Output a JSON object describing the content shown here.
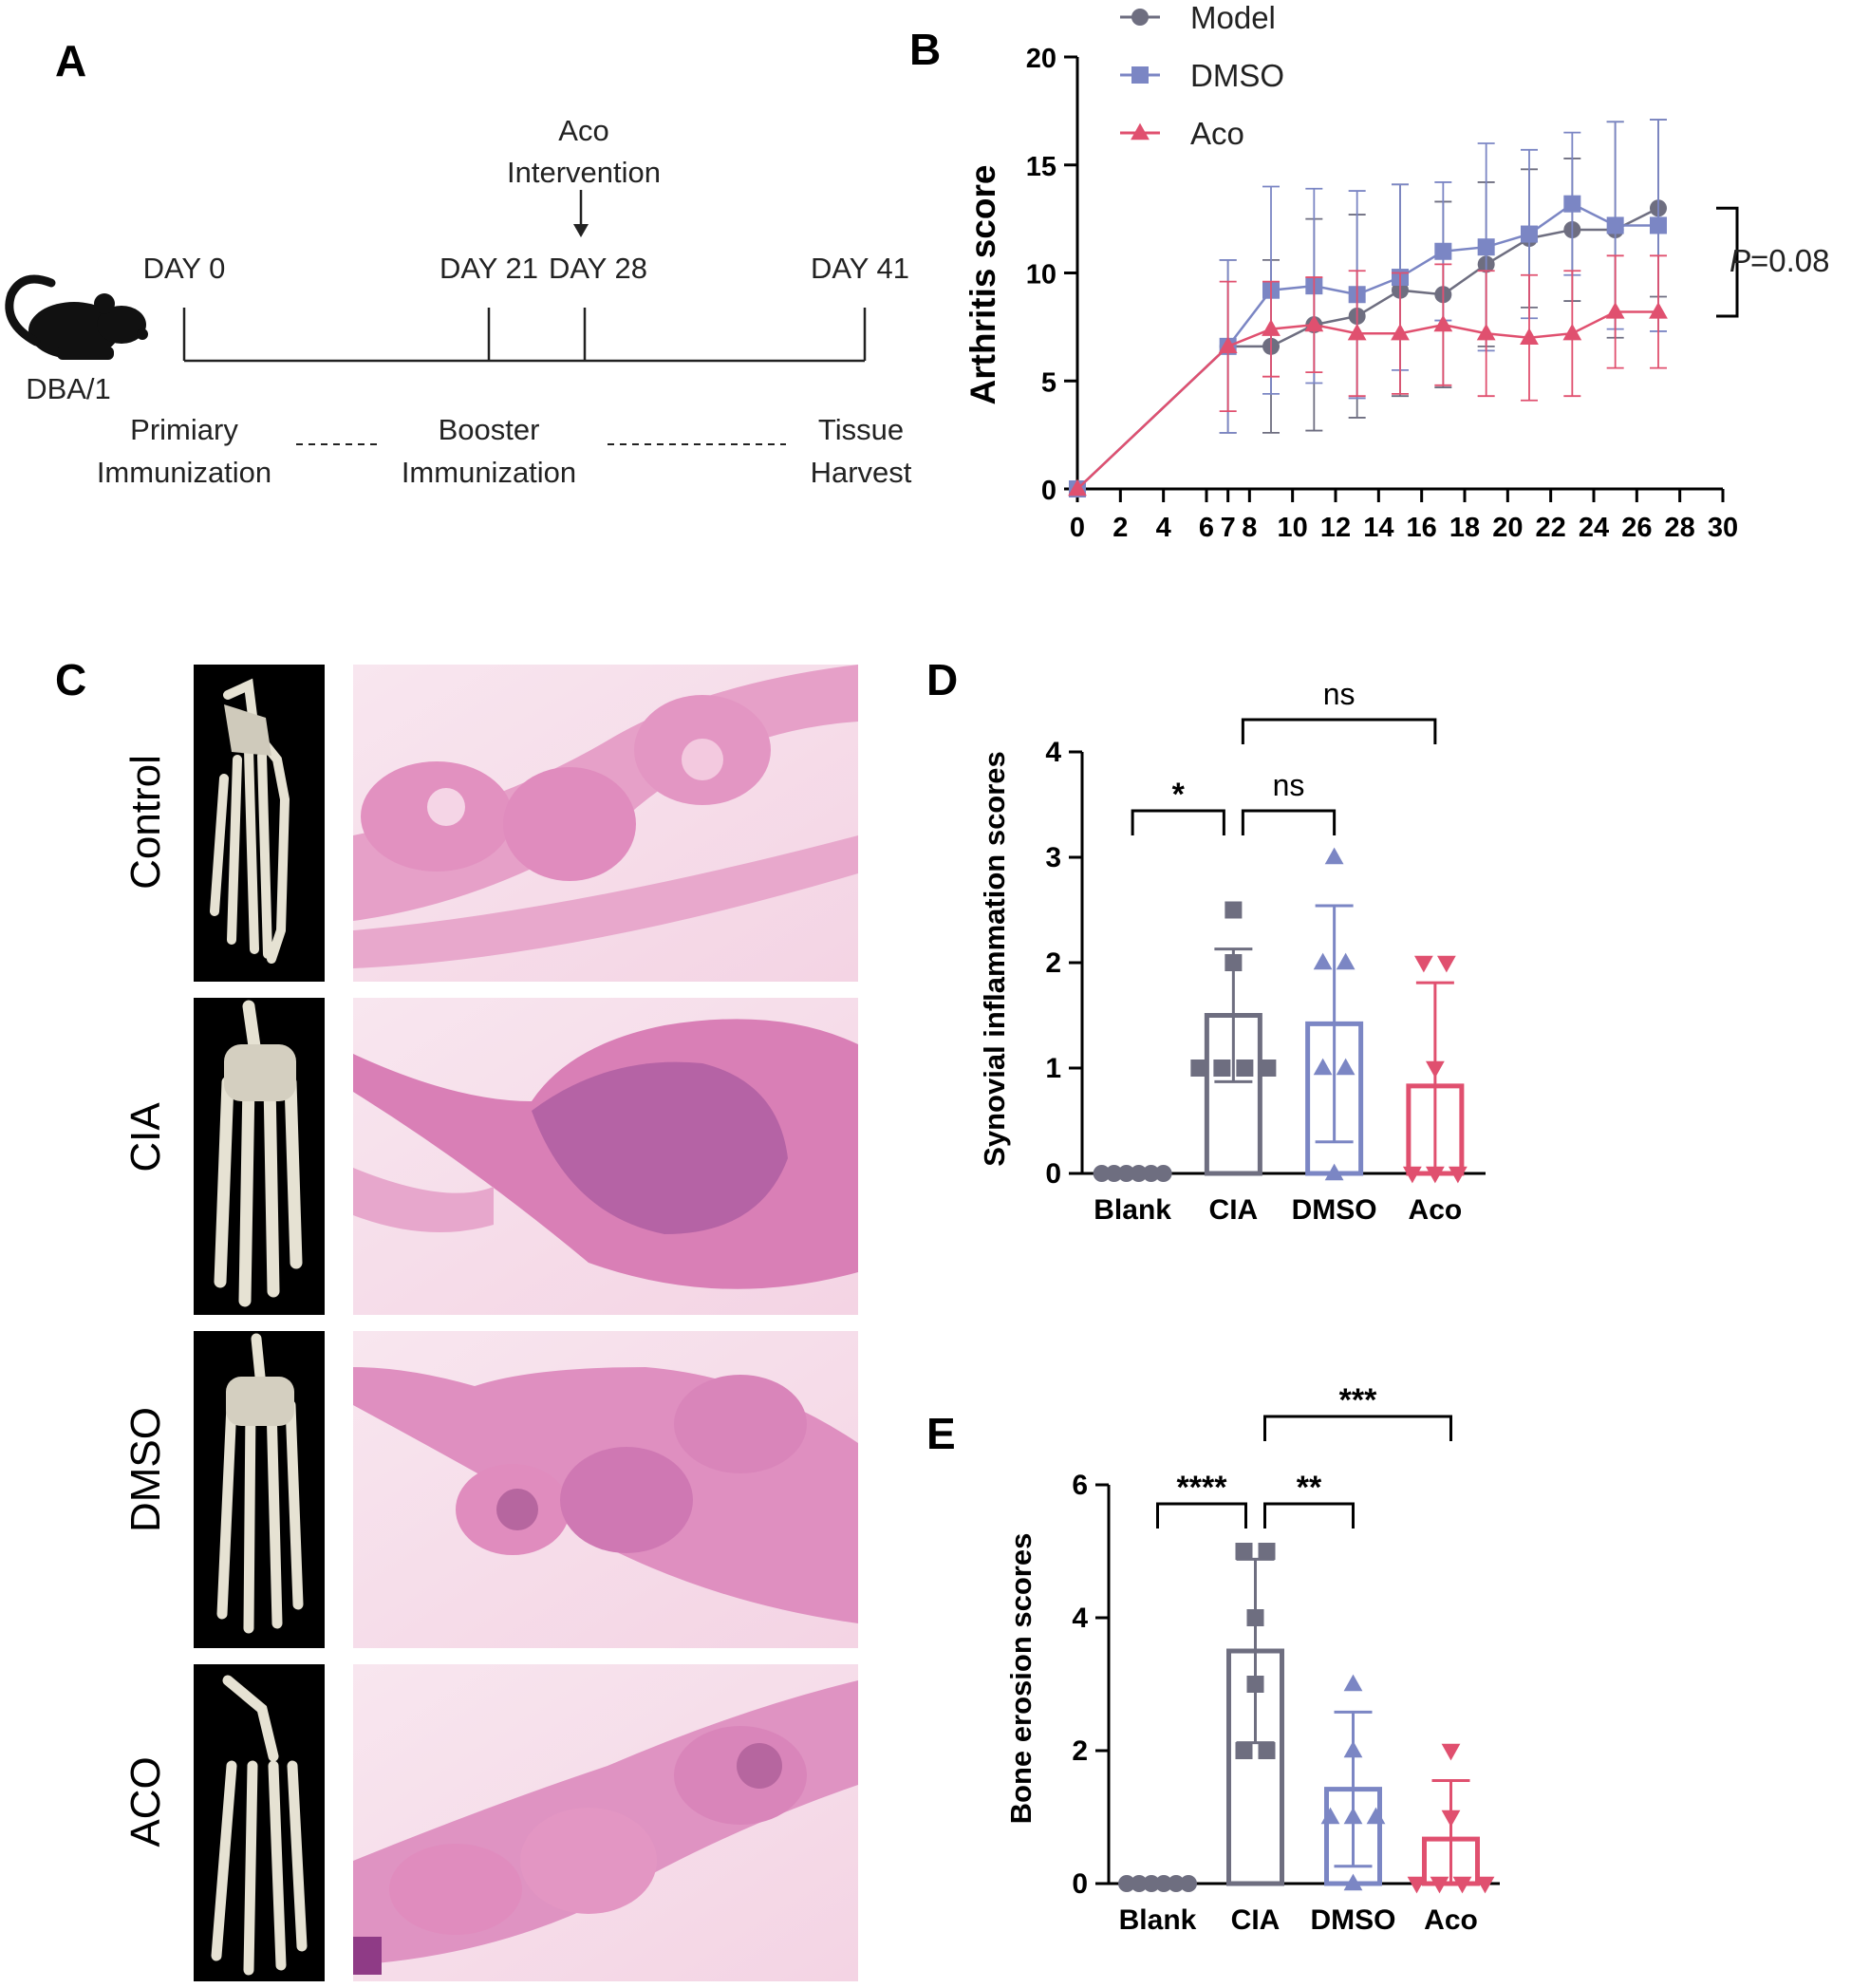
{
  "panels": {
    "A": "A",
    "B": "B",
    "C": "C",
    "D": "D",
    "E": "E"
  },
  "timeline": {
    "strain": "DBA/1",
    "intervention_line1": "Aco",
    "intervention_line2": "Intervention",
    "days": [
      "DAY 0",
      "DAY 21",
      "DAY 28",
      "DAY 41"
    ],
    "phases": [
      {
        "line1": "Primiary",
        "line2": "Immunization"
      },
      {
        "line1": "Booster",
        "line2": "Immunization"
      },
      {
        "line1": "Tissue",
        "line2": "Harvest"
      }
    ],
    "colors": {
      "line": "#222222",
      "mouse": "#111111"
    }
  },
  "histology": {
    "rows": [
      "Control",
      "CIA",
      "DMSO",
      "ACO"
    ],
    "colors": {
      "stain_light": "#f3c4dc",
      "stain_mid": "#e48fbf",
      "stain_dark": "#b35a9e",
      "bone_bg": "#000000",
      "bone": "#e6e2d3"
    }
  },
  "chart_data": [
    {
      "panel": "B",
      "type": "line",
      "title": "",
      "xlabel": "",
      "ylabel": "Arthritis score",
      "xlim": [
        0,
        30
      ],
      "ylim": [
        0,
        20
      ],
      "xticks": [
        "0",
        "2",
        "4",
        "6",
        "7",
        "8",
        "10",
        "12",
        "14",
        "16",
        "18",
        "20",
        "22",
        "24",
        "26",
        "28",
        "30"
      ],
      "yticks": [
        "0",
        "5",
        "10",
        "15",
        "20"
      ],
      "legend_position": "top-left",
      "annotation": {
        "italic": "P",
        "text": "=0.08"
      },
      "series": [
        {
          "name": "Model",
          "color": "#6e6e80",
          "marker": "circle",
          "x": [
            0,
            7,
            9,
            11,
            13,
            15,
            17,
            19,
            21,
            23,
            25,
            27
          ],
          "y": [
            0,
            6.6,
            6.6,
            7.6,
            8.0,
            9.2,
            9.0,
            10.4,
            11.6,
            12.0,
            12.0,
            13.0
          ],
          "err": [
            0,
            4.0,
            4.0,
            4.9,
            4.7,
            4.9,
            4.3,
            3.8,
            3.2,
            3.3,
            5.0,
            4.1
          ]
        },
        {
          "name": "DMSO",
          "color": "#7b86c4",
          "marker": "square",
          "x": [
            0,
            7,
            9,
            11,
            13,
            15,
            17,
            19,
            21,
            23,
            25,
            27
          ],
          "y": [
            0,
            6.6,
            9.2,
            9.4,
            9.0,
            9.8,
            11.0,
            11.2,
            11.8,
            13.2,
            12.2,
            12.2
          ],
          "err": [
            0,
            4.0,
            4.8,
            4.5,
            4.8,
            4.3,
            3.2,
            4.8,
            3.9,
            3.3,
            4.8,
            4.9
          ]
        },
        {
          "name": "Aco",
          "color": "#e0506f",
          "marker": "triangle",
          "x": [
            0,
            7,
            9,
            11,
            13,
            15,
            17,
            19,
            21,
            23,
            25,
            27
          ],
          "y": [
            0,
            6.6,
            7.4,
            7.6,
            7.2,
            7.2,
            7.6,
            7.2,
            7.0,
            7.2,
            8.2,
            8.2
          ],
          "err": [
            0,
            3.0,
            2.2,
            2.2,
            2.9,
            2.8,
            2.8,
            2.9,
            2.9,
            2.9,
            2.6,
            2.6
          ]
        }
      ]
    },
    {
      "panel": "D",
      "type": "bar",
      "title": "",
      "xlabel": "",
      "ylabel": "Synovial inflammation scores",
      "ylim": [
        0,
        4
      ],
      "yticks": [
        "0",
        "1",
        "2",
        "3",
        "4"
      ],
      "categories": [
        "Blank",
        "CIA",
        "DMSO",
        "Aco"
      ],
      "values": [
        0,
        1.5,
        1.42,
        0.83
      ],
      "errors": [
        0,
        0.63,
        1.12,
        0.98
      ],
      "colors": [
        "#6e6e80",
        "#6e6e80",
        "#7b86c4",
        "#e0506f"
      ],
      "markers": [
        "circle",
        "square",
        "triangle",
        "triangle-down"
      ],
      "points": [
        [
          0,
          0,
          0,
          0,
          0,
          0
        ],
        [
          1,
          1,
          1,
          1,
          2,
          2.5
        ],
        [
          0,
          1,
          1,
          2,
          2,
          3
        ],
        [
          0,
          0,
          0,
          1,
          2,
          2
        ]
      ],
      "significance": [
        {
          "from": 0,
          "to": 1,
          "label": "*"
        },
        {
          "from": 1,
          "to": 2,
          "label": "ns"
        },
        {
          "from": 1,
          "to": 3,
          "label": "ns"
        }
      ]
    },
    {
      "panel": "E",
      "type": "bar",
      "title": "",
      "xlabel": "",
      "ylabel": "Bone erosion scores",
      "ylim": [
        0,
        6
      ],
      "yticks": [
        "0",
        "2",
        "4",
        "6"
      ],
      "categories": [
        "Blank",
        "CIA",
        "DMSO",
        "Aco"
      ],
      "values": [
        0,
        3.5,
        1.42,
        0.67
      ],
      "errors": [
        0,
        1.38,
        1.16,
        0.88
      ],
      "colors": [
        "#6e6e80",
        "#6e6e80",
        "#7b86c4",
        "#e0506f"
      ],
      "markers": [
        "circle",
        "square",
        "triangle",
        "triangle-down"
      ],
      "points": [
        [
          0,
          0,
          0,
          0,
          0,
          0
        ],
        [
          2,
          2,
          3,
          4,
          5,
          5
        ],
        [
          0,
          1,
          1,
          1,
          2,
          3
        ],
        [
          0,
          0,
          0,
          0,
          1,
          2
        ]
      ],
      "significance": [
        {
          "from": 0,
          "to": 1,
          "label": "****"
        },
        {
          "from": 1,
          "to": 2,
          "label": "**"
        },
        {
          "from": 1,
          "to": 3,
          "label": "***"
        }
      ]
    }
  ]
}
